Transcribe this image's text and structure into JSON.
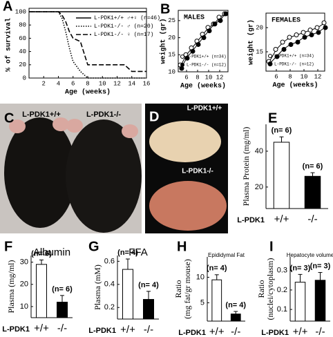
{
  "chart_data": [
    {
      "type": "line",
      "panel": "A",
      "xlabel": "Age (weeks)",
      "ylabel": "% of survival",
      "x": [
        0,
        2,
        4,
        4.5,
        5,
        5.5,
        6,
        7,
        8,
        10,
        12,
        13,
        14,
        16
      ],
      "xlim": [
        0,
        16
      ],
      "xticks": [
        2,
        4,
        6,
        8,
        10,
        12,
        14,
        16
      ],
      "ylim": [
        0,
        100
      ],
      "yticks": [
        0,
        20,
        40,
        60,
        80,
        100
      ],
      "series": [
        {
          "name": "L-PDK1+/+ ♂+♀ (n=46)",
          "color": "#000000",
          "dash": "solid",
          "values": [
            100,
            100,
            100,
            100,
            100,
            100,
            100,
            100,
            100,
            100,
            100,
            100,
            100,
            100
          ]
        },
        {
          "name": "L-PDK1-/- ♂ (n=20)",
          "color": "#000000",
          "dash": "dotted",
          "values": [
            100,
            100,
            100,
            90,
            70,
            45,
            25,
            10,
            0,
            0,
            0,
            0,
            0,
            0
          ]
        },
        {
          "name": "L-PDK1-/- ♀ (n=17)",
          "color": "#000000",
          "dash": "dashed",
          "values": [
            100,
            100,
            100,
            95,
            85,
            70,
            60,
            55,
            20,
            20,
            20,
            20,
            10,
            10
          ]
        }
      ]
    },
    {
      "type": "scatter",
      "panel": "B",
      "title": "MALES",
      "xlabel": "Age (weeks)",
      "ylabel": "weight (gr)",
      "x": [
        5,
        6,
        7,
        8,
        9,
        10,
        11,
        12,
        13
      ],
      "xlim": [
        4.5,
        13.5
      ],
      "xticks": [
        6,
        8,
        10,
        12
      ],
      "ylim": [
        10,
        28
      ],
      "yticks": [
        10,
        15,
        20,
        25
      ],
      "series": [
        {
          "name": "L-PDK1+/+ (n=34)",
          "color": "#000000",
          "marker": "open",
          "values": [
            12,
            15,
            17,
            19,
            21,
            23,
            24,
            26,
            27
          ]
        },
        {
          "name": "L-PDK1-/- (n=12)",
          "color": "#000000",
          "marker": "filled",
          "values": [
            11,
            14,
            16,
            18,
            20,
            22,
            24,
            25,
            27
          ]
        }
      ]
    },
    {
      "type": "scatter",
      "title": "FEMALES",
      "xlabel": "Age (weeks)",
      "ylabel": "weight (gr)",
      "x": [
        5,
        6,
        7,
        8,
        9,
        10,
        11,
        12,
        13
      ],
      "xlim": [
        4.5,
        13
      ],
      "xticks": [
        6,
        8,
        10,
        12
      ],
      "ylim": [
        11,
        23
      ],
      "yticks": [
        15,
        20
      ],
      "series": [
        {
          "name": "L-PDK1+/+ (n=34)",
          "color": "#000000",
          "marker": "open",
          "values": [
            13,
            15.5,
            17,
            18,
            18.5,
            19,
            19.5,
            20,
            21
          ]
        },
        {
          "name": "L-PDK1-/- (n=12)",
          "color": "#000000",
          "marker": "filled",
          "values": [
            12.5,
            14,
            15.5,
            16.5,
            17,
            18,
            18.5,
            19,
            20
          ]
        }
      ]
    },
    {
      "type": "bar",
      "panel": "E",
      "ylabel": [
        "Plasma Protein (mg/ml)"
      ],
      "xlabel": "L-PDK1",
      "categories": [
        "+/+",
        "-/-"
      ],
      "values": [
        45,
        26
      ],
      "errors": [
        3,
        2
      ],
      "colors": [
        "#ffffff",
        "#000000"
      ],
      "annotations": [
        "(n= 6)",
        "(n= 6)"
      ],
      "ylim": [
        8,
        55
      ],
      "yticks": [
        20,
        40
      ]
    },
    {
      "type": "bar",
      "panel": "F",
      "title": "Albumin",
      "ylabel": [
        "Plasma (mg/ml)"
      ],
      "xlabel": "L-PDK1",
      "categories": [
        "+/+",
        "-/-"
      ],
      "values": [
        29,
        12
      ],
      "errors": [
        2,
        3
      ],
      "colors": [
        "#ffffff",
        "#000000"
      ],
      "annotations": [
        "(n= 6)",
        "(n= 6)"
      ],
      "ylim": [
        5,
        33
      ],
      "yticks": [
        10,
        20,
        30
      ]
    },
    {
      "type": "bar",
      "panel": "G",
      "title": "FFA",
      "ylabel": [
        "Plasma (mM)"
      ],
      "xlabel": "L-PDK1",
      "categories": [
        "+/+",
        "-/-"
      ],
      "values": [
        0.53,
        0.27
      ],
      "errors": [
        0.09,
        0.07
      ],
      "colors": [
        "#ffffff",
        "#000000"
      ],
      "annotations": [
        "(n= 4)",
        "(n= 4)"
      ],
      "ylim": [
        0.1,
        0.65
      ],
      "yticks": [
        0.2,
        0.4,
        0.6
      ]
    },
    {
      "type": "bar",
      "panel": "H",
      "title": "Epididymal Fat",
      "ylabel": [
        "Ratio",
        "(mg fat/gr mouse)"
      ],
      "xlabel": "L-PDK1",
      "categories": [
        "+/+",
        "-/-"
      ],
      "values": [
        9.5,
        2.8
      ],
      "errors": [
        1,
        0.5
      ],
      "colors": [
        "#ffffff",
        "#000000"
      ],
      "annotations": [
        "(n= 4)",
        "(n= 4)"
      ],
      "ylim": [
        1.4,
        14
      ],
      "yticks": [
        5,
        10
      ]
    },
    {
      "type": "bar",
      "panel": "I",
      "title": "Hepatocyte volume",
      "ylabel": [
        "Ratio",
        "(nuclei/cytoplasm)"
      ],
      "xlabel": "L-PDK1",
      "categories": [
        "+/+",
        "-/-"
      ],
      "values": [
        0.24,
        0.25
      ],
      "errors": [
        0.04,
        0.04
      ],
      "colors": [
        "#ffffff",
        "#000000"
      ],
      "annotations": [
        "(n= 3)",
        "(n= 3)"
      ],
      "ylim": [
        0.04,
        0.37
      ],
      "yticks": [
        0.1,
        0.2,
        0.3
      ]
    }
  ],
  "photos": [
    {
      "panel": "C",
      "labels": [
        "L-PDK1+/+",
        "L-PDK1-/-"
      ]
    },
    {
      "panel": "D",
      "labels": [
        "L-PDK1+/+",
        "L-PDK1-/-"
      ]
    }
  ]
}
